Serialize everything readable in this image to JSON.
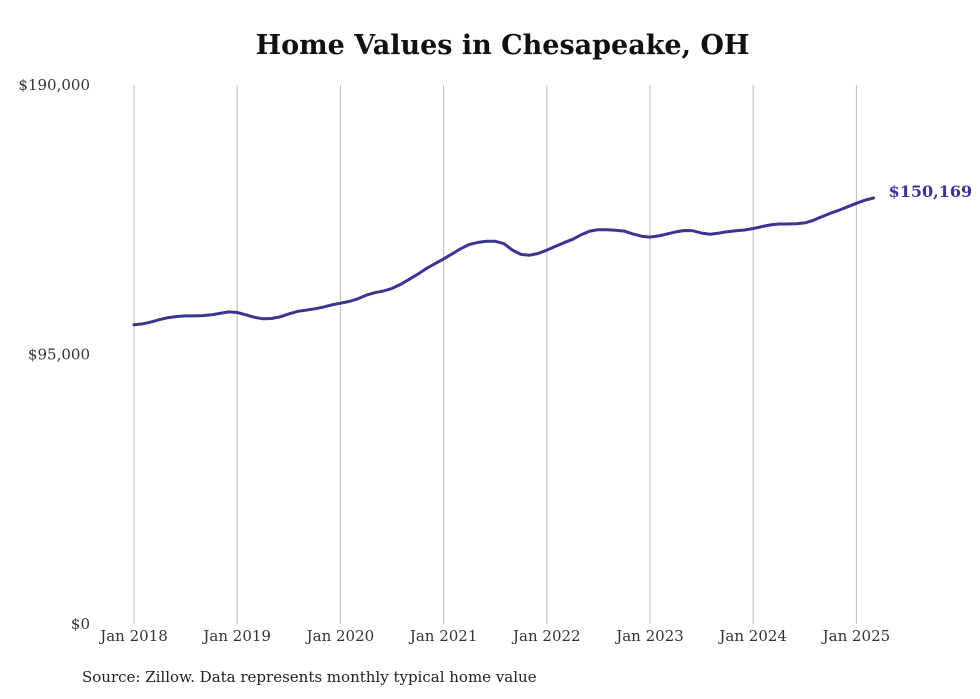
{
  "chart_data": {
    "type": "line",
    "title": "Home Values in Chesapeake, OH",
    "source": "Source: Zillow. Data represents monthly typical home value",
    "ylim": [
      0,
      190000
    ],
    "y_ticks": [
      0,
      95000,
      190000
    ],
    "y_tick_labels": [
      "$0",
      "$95,000",
      "$190,000"
    ],
    "x_ticks": [
      "2018-01",
      "2019-01",
      "2020-01",
      "2021-01",
      "2022-01",
      "2023-01",
      "2024-01",
      "2025-01"
    ],
    "x_tick_labels": [
      "Jan 2018",
      "Jan 2019",
      "Jan 2020",
      "Jan 2021",
      "Jan 2022",
      "Jan 2023",
      "Jan 2024",
      "Jan 2025"
    ],
    "x_grid": true,
    "y_grid": false,
    "line_color": "#3a3592",
    "end_label": "$150,169",
    "series": [
      {
        "values": [
          [
            "2018-01",
            105500
          ],
          [
            "2018-02",
            105800
          ],
          [
            "2018-03",
            106500
          ],
          [
            "2018-04",
            107300
          ],
          [
            "2018-05",
            108000
          ],
          [
            "2018-06",
            108400
          ],
          [
            "2018-07",
            108600
          ],
          [
            "2018-08",
            108600
          ],
          [
            "2018-09",
            108700
          ],
          [
            "2018-10",
            109000
          ],
          [
            "2018-11",
            109500
          ],
          [
            "2018-12",
            110000
          ],
          [
            "2019-01",
            109800
          ],
          [
            "2019-02",
            109000
          ],
          [
            "2019-03",
            108100
          ],
          [
            "2019-04",
            107600
          ],
          [
            "2019-05",
            107700
          ],
          [
            "2019-06",
            108300
          ],
          [
            "2019-07",
            109300
          ],
          [
            "2019-08",
            110200
          ],
          [
            "2019-09",
            110600
          ],
          [
            "2019-10",
            111100
          ],
          [
            "2019-11",
            111700
          ],
          [
            "2019-12",
            112500
          ],
          [
            "2020-01",
            113100
          ],
          [
            "2020-02",
            113700
          ],
          [
            "2020-03",
            114600
          ],
          [
            "2020-04",
            115900
          ],
          [
            "2020-05",
            116800
          ],
          [
            "2020-06",
            117400
          ],
          [
            "2020-07",
            118300
          ],
          [
            "2020-08",
            119700
          ],
          [
            "2020-09",
            121500
          ],
          [
            "2020-10",
            123300
          ],
          [
            "2020-11",
            125300
          ],
          [
            "2020-12",
            127000
          ],
          [
            "2021-01",
            128700
          ],
          [
            "2021-02",
            130500
          ],
          [
            "2021-03",
            132300
          ],
          [
            "2021-04",
            133800
          ],
          [
            "2021-05",
            134500
          ],
          [
            "2021-06",
            134900
          ],
          [
            "2021-07",
            134900
          ],
          [
            "2021-08",
            134100
          ],
          [
            "2021-09",
            131800
          ],
          [
            "2021-10",
            130300
          ],
          [
            "2021-11",
            130000
          ],
          [
            "2021-12",
            130600
          ],
          [
            "2022-01",
            131800
          ],
          [
            "2022-02",
            133100
          ],
          [
            "2022-03",
            134400
          ],
          [
            "2022-04",
            135600
          ],
          [
            "2022-05",
            137200
          ],
          [
            "2022-06",
            138500
          ],
          [
            "2022-07",
            139000
          ],
          [
            "2022-08",
            139000
          ],
          [
            "2022-09",
            138800
          ],
          [
            "2022-10",
            138500
          ],
          [
            "2022-11",
            137500
          ],
          [
            "2022-12",
            136700
          ],
          [
            "2023-01",
            136400
          ],
          [
            "2023-02",
            136800
          ],
          [
            "2023-03",
            137500
          ],
          [
            "2023-04",
            138200
          ],
          [
            "2023-05",
            138700
          ],
          [
            "2023-06",
            138600
          ],
          [
            "2023-07",
            137800
          ],
          [
            "2023-08",
            137400
          ],
          [
            "2023-09",
            137800
          ],
          [
            "2023-10",
            138300
          ],
          [
            "2023-11",
            138600
          ],
          [
            "2023-12",
            138900
          ],
          [
            "2024-01",
            139400
          ],
          [
            "2024-02",
            140100
          ],
          [
            "2024-03",
            140700
          ],
          [
            "2024-04",
            141000
          ],
          [
            "2024-05",
            141000
          ],
          [
            "2024-06",
            141100
          ],
          [
            "2024-07",
            141400
          ],
          [
            "2024-08",
            142300
          ],
          [
            "2024-09",
            143600
          ],
          [
            "2024-10",
            144800
          ],
          [
            "2024-11",
            145900
          ],
          [
            "2024-12",
            147100
          ],
          [
            "2025-01",
            148300
          ],
          [
            "2025-02",
            149400
          ],
          [
            "2025-03",
            150169
          ]
        ]
      }
    ]
  }
}
